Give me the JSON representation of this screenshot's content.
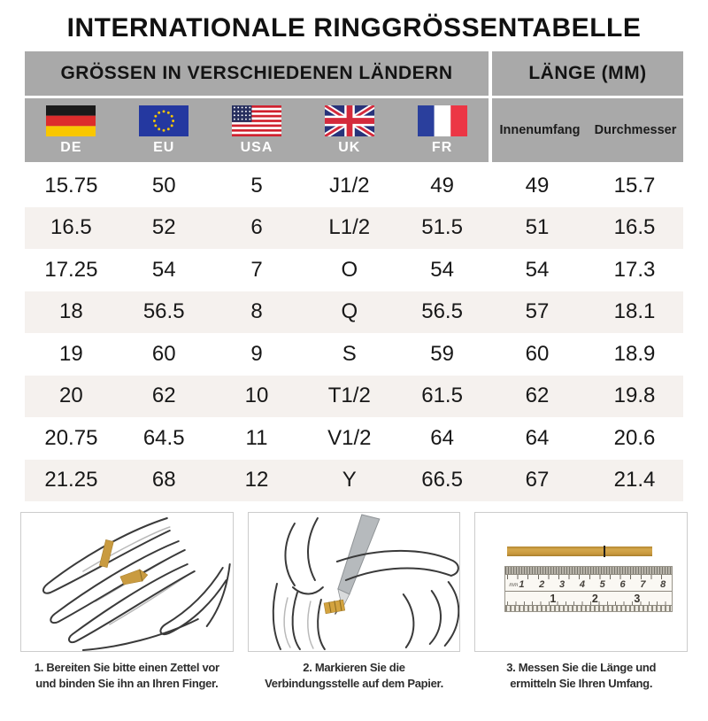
{
  "title": "INTERNATIONALE RINGGRÖSSENTABELLE",
  "table": {
    "header_left": "GRÖSSEN IN VERSCHIEDENEN LÄNDERN",
    "header_right": "LÄNGE (MM)",
    "countries": [
      {
        "code": "DE",
        "flag": "germany-flag-icon"
      },
      {
        "code": "EU",
        "flag": "eu-flag-icon"
      },
      {
        "code": "USA",
        "flag": "usa-flag-icon"
      },
      {
        "code": "UK",
        "flag": "uk-flag-icon"
      },
      {
        "code": "FR",
        "flag": "france-flag-icon"
      }
    ],
    "length_columns": [
      "Innenumfang",
      "Durchmesser"
    ],
    "rows": [
      [
        "15.75",
        "50",
        "5",
        "J1/2",
        "49",
        "49",
        "15.7"
      ],
      [
        "16.5",
        "52",
        "6",
        "L1/2",
        "51.5",
        "51",
        "16.5"
      ],
      [
        "17.25",
        "54",
        "7",
        "O",
        "54",
        "54",
        "17.3"
      ],
      [
        "18",
        "56.5",
        "8",
        "Q",
        "56.5",
        "57",
        "18.1"
      ],
      [
        "19",
        "60",
        "9",
        "S",
        "59",
        "60",
        "18.9"
      ],
      [
        "20",
        "62",
        "10",
        "T1/2",
        "61.5",
        "62",
        "19.8"
      ],
      [
        "20.75",
        "64.5",
        "11",
        "V1/2",
        "64",
        "64",
        "20.6"
      ],
      [
        "21.25",
        "68",
        "12",
        "Y",
        "66.5",
        "67",
        "21.4"
      ]
    ]
  },
  "steps": [
    {
      "caption_lines": [
        "1. Bereiten Sie bitte einen Zettel vor",
        "und binden Sie ihn an Ihren Finger."
      ]
    },
    {
      "caption_lines": [
        "2. Markieren Sie die",
        "Verbindungsstelle auf dem Papier."
      ]
    },
    {
      "caption_lines": [
        "3. Messen Sie die Länge und",
        "ermitteln Sie Ihren Umfang."
      ]
    }
  ],
  "ruler": {
    "unit": "mm",
    "cm_numbers": [
      "1",
      "2",
      "3",
      "4",
      "5",
      "6",
      "7",
      "8"
    ],
    "inch_numbers": [
      "1",
      "2",
      "3"
    ]
  },
  "colors": {
    "header_bg": "#a9a9a9",
    "row_alt_bg": "#f5f1ee",
    "text_dark": "#1a1a1a",
    "flag_label": "#ffffff",
    "strip_gold": "#c8993e",
    "box_border": "#cccccc",
    "caption_text": "#2d2d2d"
  }
}
